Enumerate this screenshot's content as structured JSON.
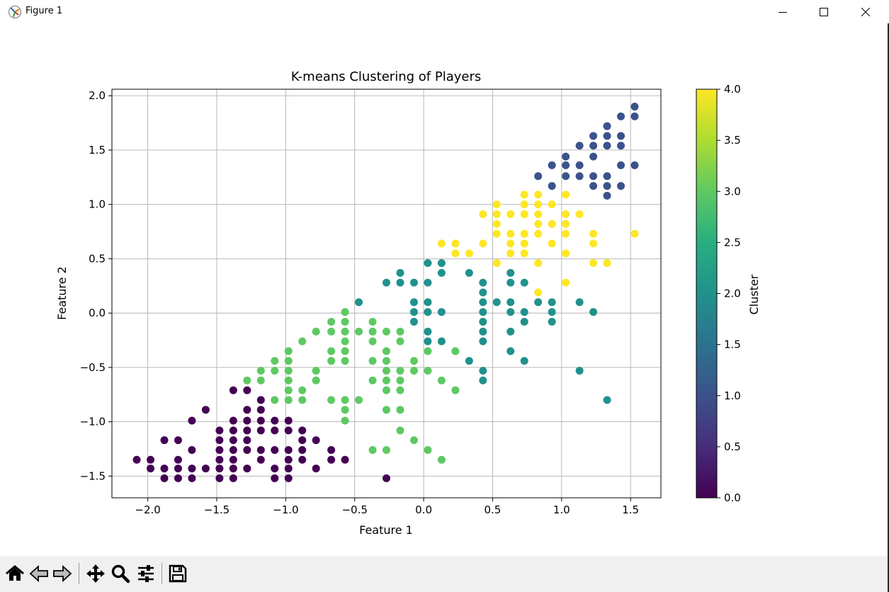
{
  "window": {
    "title": "Figure 1"
  },
  "toolbar": {
    "buttons": [
      "home-icon",
      "back-icon",
      "forward-icon",
      "pan-icon",
      "zoom-icon",
      "configure-subplots-icon",
      "save-icon"
    ]
  },
  "chart_data": {
    "type": "scatter",
    "title": "K-means Clustering of Players",
    "xlabel": "Feature 1",
    "ylabel": "Feature 2",
    "xlim": [
      -2.26,
      1.72
    ],
    "ylim": [
      -1.7,
      2.06
    ],
    "xticks": [
      "−2.0",
      "−1.5",
      "−1.0",
      "−0.5",
      "0.0",
      "0.5",
      "1.0",
      "1.5"
    ],
    "xtick_values": [
      -2.0,
      -1.5,
      -1.0,
      -0.5,
      0.0,
      0.5,
      1.0,
      1.5
    ],
    "yticks": [
      "−1.5",
      "−1.0",
      "−0.5",
      "0.0",
      "0.5",
      "1.0",
      "1.5",
      "2.0"
    ],
    "ytick_values": [
      -1.5,
      -1.0,
      -0.5,
      0.0,
      0.5,
      1.0,
      1.5,
      2.0
    ],
    "grid": true,
    "colorbar": {
      "label": "Cluster",
      "colormap": "viridis",
      "range": [
        0.0,
        4.0
      ],
      "ticks": [
        "0.0",
        "0.5",
        "1.0",
        "1.5",
        "2.0",
        "2.5",
        "3.0",
        "3.5",
        "4.0"
      ],
      "tick_values": [
        0.0,
        0.5,
        1.0,
        1.5,
        2.0,
        2.5,
        3.0,
        3.5,
        4.0
      ]
    },
    "cluster_colors": [
      "#440154",
      "#3b528b",
      "#21918c",
      "#5ec962",
      "#fde725"
    ],
    "series": [
      {
        "cluster": 0,
        "points": [
          [
            -2.08,
            -1.35
          ],
          [
            -1.98,
            -1.35
          ],
          [
            -1.98,
            -1.43
          ],
          [
            -1.88,
            -1.43
          ],
          [
            -1.88,
            -1.52
          ],
          [
            -1.88,
            -1.17
          ],
          [
            -1.78,
            -1.17
          ],
          [
            -1.78,
            -1.35
          ],
          [
            -1.78,
            -1.43
          ],
          [
            -1.78,
            -1.52
          ],
          [
            -1.68,
            -1.52
          ],
          [
            -1.68,
            -1.43
          ],
          [
            -1.68,
            -1.26
          ],
          [
            -1.68,
            -0.99
          ],
          [
            -1.58,
            -1.43
          ],
          [
            -1.58,
            -0.89
          ],
          [
            -1.48,
            -1.52
          ],
          [
            -1.48,
            -1.43
          ],
          [
            -1.48,
            -1.35
          ],
          [
            -1.48,
            -1.26
          ],
          [
            -1.48,
            -1.17
          ],
          [
            -1.48,
            -1.08
          ],
          [
            -1.38,
            -1.52
          ],
          [
            -1.38,
            -1.43
          ],
          [
            -1.38,
            -1.35
          ],
          [
            -1.38,
            -1.26
          ],
          [
            -1.38,
            -1.17
          ],
          [
            -1.38,
            -1.08
          ],
          [
            -1.38,
            -0.99
          ],
          [
            -1.38,
            -0.71
          ],
          [
            -1.28,
            -1.43
          ],
          [
            -1.28,
            -1.26
          ],
          [
            -1.28,
            -1.17
          ],
          [
            -1.28,
            -1.08
          ],
          [
            -1.28,
            -0.99
          ],
          [
            -1.28,
            -0.89
          ],
          [
            -1.28,
            -0.71
          ],
          [
            -1.18,
            -1.35
          ],
          [
            -1.18,
            -1.26
          ],
          [
            -1.18,
            -1.08
          ],
          [
            -1.18,
            -0.99
          ],
          [
            -1.18,
            -0.89
          ],
          [
            -1.18,
            -0.8
          ],
          [
            -1.08,
            -1.52
          ],
          [
            -1.08,
            -1.43
          ],
          [
            -1.08,
            -1.26
          ],
          [
            -1.08,
            -1.08
          ],
          [
            -1.08,
            -0.99
          ],
          [
            -0.98,
            -1.52
          ],
          [
            -0.98,
            -1.43
          ],
          [
            -0.98,
            -1.35
          ],
          [
            -0.98,
            -1.26
          ],
          [
            -0.98,
            -1.08
          ],
          [
            -0.98,
            -0.99
          ],
          [
            -0.88,
            -1.35
          ],
          [
            -0.88,
            -1.26
          ],
          [
            -0.88,
            -1.17
          ],
          [
            -0.88,
            -1.08
          ],
          [
            -0.78,
            -1.43
          ],
          [
            -0.78,
            -1.17
          ],
          [
            -0.67,
            -1.35
          ],
          [
            -0.67,
            -1.26
          ],
          [
            -0.57,
            -1.35
          ],
          [
            -0.27,
            -1.52
          ]
        ]
      },
      {
        "cluster": 1,
        "points": [
          [
            0.83,
            1.26
          ],
          [
            0.93,
            1.17
          ],
          [
            0.93,
            1.36
          ],
          [
            1.03,
            1.26
          ],
          [
            1.03,
            1.36
          ],
          [
            1.03,
            1.44
          ],
          [
            1.13,
            1.26
          ],
          [
            1.13,
            1.36
          ],
          [
            1.13,
            1.54
          ],
          [
            1.23,
            1.17
          ],
          [
            1.23,
            1.26
          ],
          [
            1.23,
            1.44
          ],
          [
            1.23,
            1.54
          ],
          [
            1.23,
            1.63
          ],
          [
            1.33,
            1.08
          ],
          [
            1.33,
            1.17
          ],
          [
            1.33,
            1.26
          ],
          [
            1.33,
            1.54
          ],
          [
            1.33,
            1.63
          ],
          [
            1.33,
            1.72
          ],
          [
            1.43,
            1.17
          ],
          [
            1.43,
            1.36
          ],
          [
            1.43,
            1.54
          ],
          [
            1.43,
            1.63
          ],
          [
            1.43,
            1.81
          ],
          [
            1.53,
            1.36
          ],
          [
            1.53,
            1.81
          ],
          [
            1.53,
            1.9
          ]
        ]
      },
      {
        "cluster": 2,
        "points": [
          [
            -0.47,
            0.1
          ],
          [
            -0.27,
            0.28
          ],
          [
            -0.17,
            0.37
          ],
          [
            -0.17,
            0.28
          ],
          [
            -0.07,
            0.28
          ],
          [
            -0.07,
            0.1
          ],
          [
            -0.07,
            0.01
          ],
          [
            -0.07,
            -0.08
          ],
          [
            0.03,
            0.46
          ],
          [
            0.03,
            0.28
          ],
          [
            0.03,
            0.1
          ],
          [
            0.03,
            0.01
          ],
          [
            0.03,
            -0.17
          ],
          [
            0.03,
            -0.26
          ],
          [
            0.13,
            0.46
          ],
          [
            0.13,
            0.37
          ],
          [
            0.13,
            0.01
          ],
          [
            0.13,
            -0.26
          ],
          [
            0.33,
            0.37
          ],
          [
            0.33,
            -0.44
          ],
          [
            0.43,
            0.28
          ],
          [
            0.43,
            0.19
          ],
          [
            0.43,
            0.1
          ],
          [
            0.43,
            0.01
          ],
          [
            0.43,
            -0.08
          ],
          [
            0.43,
            -0.17
          ],
          [
            0.43,
            -0.26
          ],
          [
            0.43,
            -0.53
          ],
          [
            0.43,
            -0.62
          ],
          [
            0.53,
            0.1
          ],
          [
            0.63,
            0.37
          ],
          [
            0.63,
            0.28
          ],
          [
            0.63,
            0.1
          ],
          [
            0.63,
            0.01
          ],
          [
            0.63,
            -0.17
          ],
          [
            0.63,
            -0.35
          ],
          [
            0.73,
            0.28
          ],
          [
            0.73,
            0.01
          ],
          [
            0.73,
            -0.08
          ],
          [
            0.73,
            -0.44
          ],
          [
            0.83,
            0.1
          ],
          [
            0.93,
            0.1
          ],
          [
            0.93,
            0.01
          ],
          [
            0.93,
            -0.08
          ],
          [
            1.13,
            0.1
          ],
          [
            1.13,
            -0.53
          ],
          [
            1.23,
            0.01
          ],
          [
            1.33,
            -0.8
          ]
        ]
      },
      {
        "cluster": 3,
        "points": [
          [
            -1.28,
            -0.62
          ],
          [
            -1.18,
            -0.53
          ],
          [
            -1.18,
            -0.62
          ],
          [
            -1.08,
            -0.44
          ],
          [
            -1.08,
            -0.53
          ],
          [
            -1.08,
            -0.8
          ],
          [
            -0.98,
            -0.35
          ],
          [
            -0.98,
            -0.44
          ],
          [
            -0.98,
            -0.53
          ],
          [
            -0.98,
            -0.62
          ],
          [
            -0.98,
            -0.71
          ],
          [
            -0.98,
            -0.8
          ],
          [
            -0.88,
            -0.26
          ],
          [
            -0.88,
            -0.71
          ],
          [
            -0.88,
            -0.8
          ],
          [
            -0.78,
            -0.17
          ],
          [
            -0.78,
            -0.53
          ],
          [
            -0.78,
            -0.62
          ],
          [
            -0.67,
            -0.08
          ],
          [
            -0.67,
            -0.17
          ],
          [
            -0.67,
            -0.35
          ],
          [
            -0.67,
            -0.44
          ],
          [
            -0.67,
            -0.8
          ],
          [
            -0.57,
            0.01
          ],
          [
            -0.57,
            -0.08
          ],
          [
            -0.57,
            -0.17
          ],
          [
            -0.57,
            -0.26
          ],
          [
            -0.57,
            -0.35
          ],
          [
            -0.57,
            -0.44
          ],
          [
            -0.57,
            -0.8
          ],
          [
            -0.57,
            -0.89
          ],
          [
            -0.57,
            -0.99
          ],
          [
            -0.47,
            -0.17
          ],
          [
            -0.47,
            -0.8
          ],
          [
            -0.37,
            -0.08
          ],
          [
            -0.37,
            -0.17
          ],
          [
            -0.37,
            -0.26
          ],
          [
            -0.37,
            -0.44
          ],
          [
            -0.37,
            -0.62
          ],
          [
            -0.37,
            -1.26
          ],
          [
            -0.27,
            -0.17
          ],
          [
            -0.27,
            -0.35
          ],
          [
            -0.27,
            -0.44
          ],
          [
            -0.27,
            -0.53
          ],
          [
            -0.27,
            -0.62
          ],
          [
            -0.27,
            -0.71
          ],
          [
            -0.27,
            -0.89
          ],
          [
            -0.27,
            -1.26
          ],
          [
            -0.17,
            -0.17
          ],
          [
            -0.17,
            -0.26
          ],
          [
            -0.17,
            -0.53
          ],
          [
            -0.17,
            -0.62
          ],
          [
            -0.17,
            -0.71
          ],
          [
            -0.17,
            -0.89
          ],
          [
            -0.17,
            -1.08
          ],
          [
            -0.07,
            -0.44
          ],
          [
            -0.07,
            -0.53
          ],
          [
            -0.07,
            -1.17
          ],
          [
            0.03,
            -0.35
          ],
          [
            0.03,
            -0.53
          ],
          [
            0.03,
            -1.26
          ],
          [
            0.13,
            -0.62
          ],
          [
            0.13,
            -1.35
          ],
          [
            0.23,
            -0.35
          ],
          [
            0.23,
            -0.71
          ]
        ]
      },
      {
        "cluster": 4,
        "points": [
          [
            0.13,
            0.64
          ],
          [
            0.23,
            0.64
          ],
          [
            0.23,
            0.55
          ],
          [
            0.33,
            0.55
          ],
          [
            0.43,
            0.91
          ],
          [
            0.43,
            0.64
          ],
          [
            0.53,
            1.0
          ],
          [
            0.53,
            0.91
          ],
          [
            0.53,
            0.82
          ],
          [
            0.53,
            0.73
          ],
          [
            0.53,
            0.46
          ],
          [
            0.63,
            0.91
          ],
          [
            0.63,
            0.73
          ],
          [
            0.63,
            0.64
          ],
          [
            0.63,
            0.55
          ],
          [
            0.73,
            1.09
          ],
          [
            0.73,
            1.0
          ],
          [
            0.73,
            0.91
          ],
          [
            0.73,
            0.73
          ],
          [
            0.73,
            0.64
          ],
          [
            0.73,
            0.55
          ],
          [
            0.83,
            1.09
          ],
          [
            0.83,
            1.0
          ],
          [
            0.83,
            0.91
          ],
          [
            0.83,
            0.82
          ],
          [
            0.83,
            0.73
          ],
          [
            0.83,
            0.46
          ],
          [
            0.83,
            0.19
          ],
          [
            0.93,
            1.0
          ],
          [
            0.93,
            0.82
          ],
          [
            0.93,
            0.64
          ],
          [
            1.03,
            1.09
          ],
          [
            1.03,
            0.91
          ],
          [
            1.03,
            0.82
          ],
          [
            1.03,
            0.73
          ],
          [
            1.03,
            0.55
          ],
          [
            1.03,
            0.28
          ],
          [
            1.13,
            0.91
          ],
          [
            1.23,
            0.73
          ],
          [
            1.23,
            0.64
          ],
          [
            1.23,
            0.46
          ],
          [
            1.33,
            0.46
          ],
          [
            1.53,
            0.73
          ]
        ]
      }
    ]
  }
}
